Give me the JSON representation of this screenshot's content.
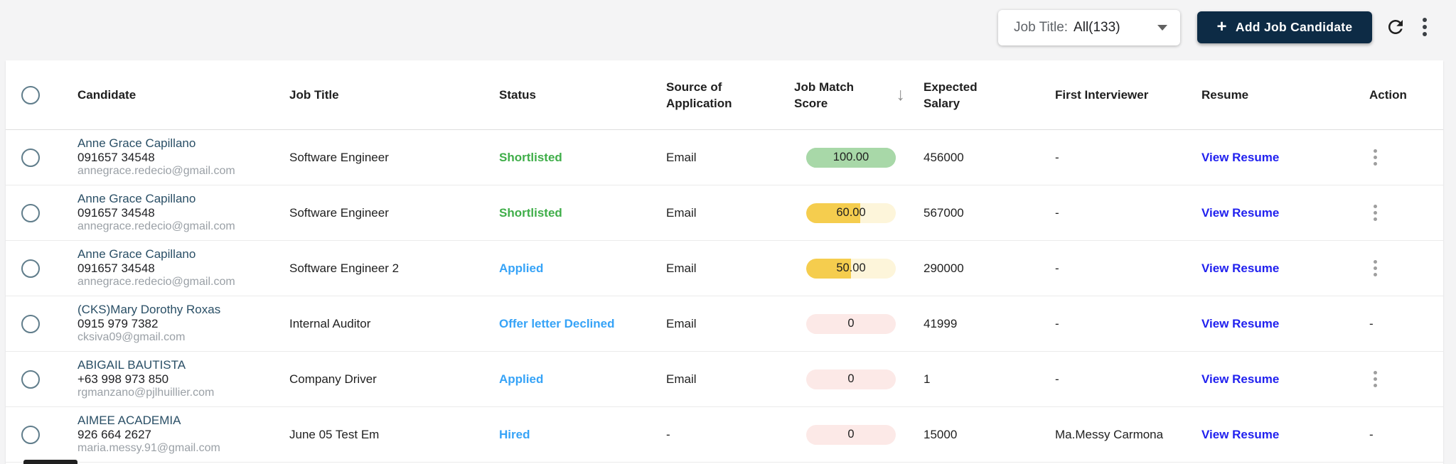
{
  "toolbar": {
    "filter": {
      "label": "Job Title:",
      "value": "All(133)"
    },
    "add_button_label": "Add Job Candidate"
  },
  "icons": {
    "plus": "+",
    "sort_desc": "↓"
  },
  "colors": {
    "btn_bg": "#0d2b45",
    "status_green": "#3fae49",
    "status_blue": "#36a3f7",
    "link_blue": "#2121ef",
    "score_green": "#a8d8a8",
    "score_yellow_fill": "#f5cd4e",
    "score_yellow_track": "#fdf5da",
    "score_red_track": "#fce9e7"
  },
  "table": {
    "columns": [
      {
        "key": "check",
        "label": ""
      },
      {
        "key": "candidate",
        "label": "Candidate"
      },
      {
        "key": "jobtitle",
        "label": "Job Title"
      },
      {
        "key": "status",
        "label": "Status"
      },
      {
        "key": "source",
        "label": "Source of Application"
      },
      {
        "key": "score",
        "label": "Job Match Score",
        "sort": "desc"
      },
      {
        "key": "salary",
        "label": "Expected Salary"
      },
      {
        "key": "interviewer",
        "label": "First Interviewer"
      },
      {
        "key": "resume",
        "label": "Resume"
      },
      {
        "key": "action",
        "label": "Action"
      }
    ],
    "rows": [
      {
        "name": "Anne Grace Capillano",
        "phone": "091657 34548",
        "email": "annegrace.redecio@gmail.com",
        "job_title": "Software Engineer",
        "status": "Shortlisted",
        "status_variant": "green",
        "source": "Email",
        "score": {
          "text": "100.00",
          "pct": 100,
          "variant": "green"
        },
        "salary": "456000",
        "interviewer": "-",
        "resume_label": "View Resume",
        "action": "kebab"
      },
      {
        "name": "Anne Grace Capillano",
        "phone": "091657 34548",
        "email": "annegrace.redecio@gmail.com",
        "job_title": "Software Engineer",
        "status": "Shortlisted",
        "status_variant": "green",
        "source": "Email",
        "score": {
          "text": "60.00",
          "pct": 60,
          "variant": "yellow"
        },
        "salary": "567000",
        "interviewer": "-",
        "resume_label": "View Resume",
        "action": "kebab"
      },
      {
        "name": "Anne Grace Capillano",
        "phone": "091657 34548",
        "email": "annegrace.redecio@gmail.com",
        "job_title": "Software Engineer 2",
        "status": "Applied",
        "status_variant": "blue",
        "source": "Email",
        "score": {
          "text": "50.00",
          "pct": 50,
          "variant": "yellow"
        },
        "salary": "290000",
        "interviewer": "-",
        "resume_label": "View Resume",
        "action": "kebab"
      },
      {
        "name": "(CKS)Mary Dorothy Roxas",
        "phone": "0915 979 7382",
        "email": "cksiva09@gmail.com",
        "job_title": "Internal Auditor",
        "status": "Offer letter Declined",
        "status_variant": "blue",
        "source": "Email",
        "score": {
          "text": "0",
          "pct": 0,
          "variant": "red"
        },
        "salary": "41999",
        "interviewer": "-",
        "resume_label": "View Resume",
        "action": "-"
      },
      {
        "name": "ABIGAIL BAUTISTA",
        "phone": "+63 998 973 850",
        "email": "rgmanzano@pjlhuillier.com",
        "job_title": "Company Driver",
        "status": "Applied",
        "status_variant": "blue",
        "source": "Email",
        "score": {
          "text": "0",
          "pct": 0,
          "variant": "red"
        },
        "salary": "1",
        "interviewer": "-",
        "resume_label": "View Resume",
        "action": "kebab"
      },
      {
        "name": "AIMEE ACADEMIA",
        "phone": "926 664 2627",
        "email": "maria.messy.91@gmail.com",
        "job_title": "June 05 Test Em",
        "status": "Hired",
        "status_variant": "blue",
        "source": "-",
        "score": {
          "text": "0",
          "pct": 0,
          "variant": "red"
        },
        "salary": "15000",
        "interviewer": "Ma.Messy Carmona",
        "resume_label": "View Resume",
        "action": "-"
      }
    ]
  }
}
